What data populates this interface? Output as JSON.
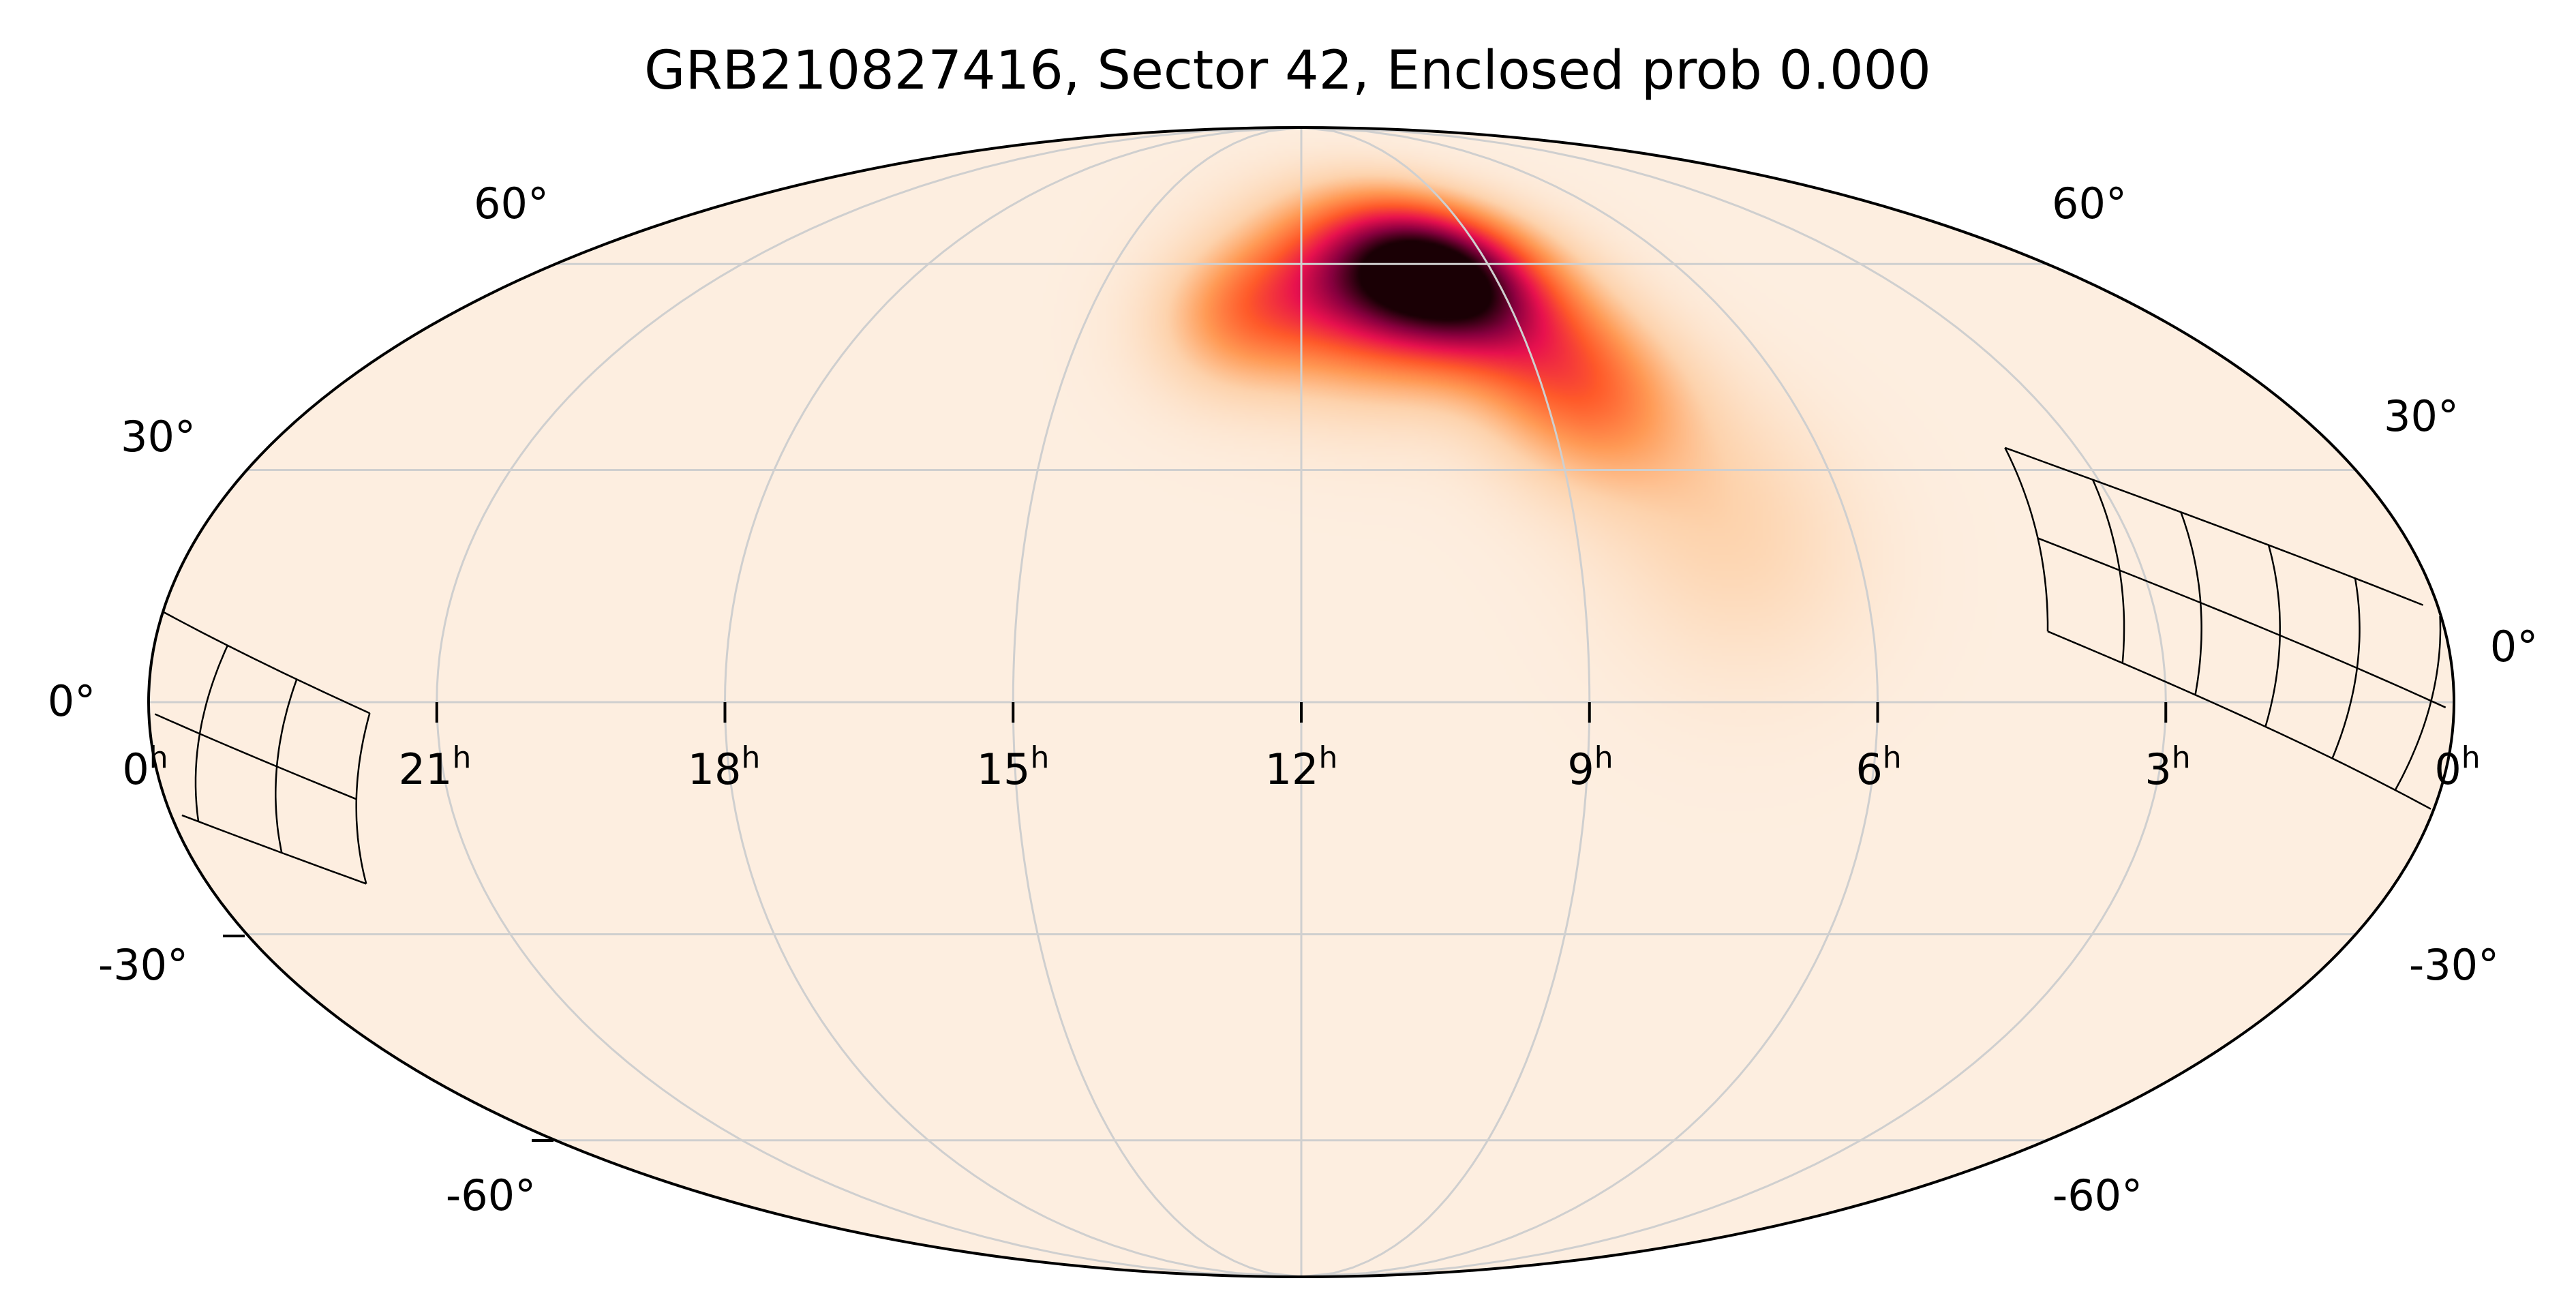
{
  "chart_data": {
    "type": "heatmap",
    "projection": "mollweide",
    "title": "GRB210827416, Sector 42, Enclosed prob 0.000",
    "ra_tick_labels": [
      {
        "hours": 24,
        "label": "0",
        "unit": "h"
      },
      {
        "hours": 21,
        "label": "21",
        "unit": "h"
      },
      {
        "hours": 18,
        "label": "18",
        "unit": "h"
      },
      {
        "hours": 15,
        "label": "15",
        "unit": "h"
      },
      {
        "hours": 12,
        "label": "12",
        "unit": "h"
      },
      {
        "hours": 9,
        "label": "9",
        "unit": "h"
      },
      {
        "hours": 6,
        "label": "6",
        "unit": "h"
      },
      {
        "hours": 3,
        "label": "3",
        "unit": "h"
      },
      {
        "hours": 0,
        "label": "0",
        "unit": "h"
      }
    ],
    "dec_tick_labels_left": [
      "60°",
      "30°",
      "0°",
      "-30°",
      "-60°"
    ],
    "dec_tick_labels_right": [
      "60°",
      "30°",
      "0°",
      "-30°",
      "-60°"
    ],
    "dec_gridlines": [
      60,
      30,
      0,
      -30,
      -60
    ],
    "ra_gridlines_hours": [
      21,
      18,
      15,
      12,
      9,
      6,
      3
    ],
    "grid": true,
    "probability_components": [
      {
        "ra_h": 9.8,
        "dec": 58,
        "sigma_deg": 8,
        "weight": 1.0
      },
      {
        "ra_h": 11.2,
        "dec": 56,
        "sigma_deg": 9,
        "weight": 0.55
      },
      {
        "ra_h": 8.6,
        "dec": 43,
        "sigma_deg": 9,
        "weight": 0.4
      },
      {
        "ra_h": 12.8,
        "dec": 52,
        "sigma_deg": 7,
        "weight": 0.25
      },
      {
        "ra_h": 7.4,
        "dec": 24,
        "sigma_deg": 12,
        "weight": 0.1
      }
    ],
    "colormap": [
      "#fdeee0",
      "#fdd3ad",
      "#ff9a55",
      "#ff5a2a",
      "#e8114f",
      "#8a0040",
      "#1a0005"
    ],
    "sector_footprint": {
      "corners": {
        "top_start": {
          "ra_h": 3.83,
          "dec": 33
        },
        "bottom_start": {
          "ra_h": 4.17,
          "dec": 9
        },
        "top_end": {
          "ra_h": -2.3,
          "dec": -1.4
        },
        "bottom_end": {
          "ra_h": -1.74,
          "dec": -23.3
        }
      },
      "columns": 8,
      "rows": 2
    },
    "colors": {
      "background": "#fdeee0",
      "grid": "#cfcfcf",
      "outline": "#000000",
      "footprint": "#000000"
    }
  }
}
